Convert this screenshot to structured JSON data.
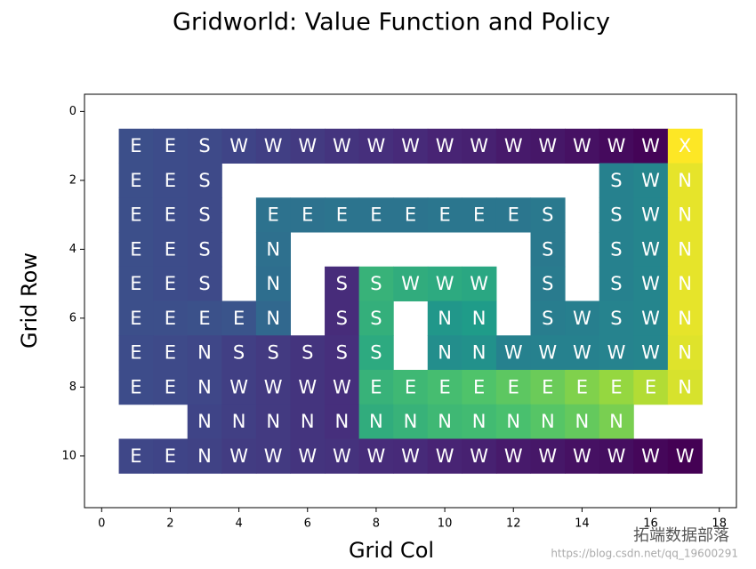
{
  "chart_data": {
    "type": "heatmap",
    "title": "Gridworld: Value Function and Policy",
    "xlabel": "Grid Col",
    "ylabel": "Grid Row",
    "xlim": [
      -0.5,
      18.5
    ],
    "ylim": [
      11.5,
      -0.5
    ],
    "xticks": [
      0,
      2,
      4,
      6,
      8,
      10,
      12,
      14,
      16,
      18
    ],
    "yticks": [
      0,
      2,
      4,
      6,
      8,
      10
    ],
    "colormap": "viridis",
    "rows": [
      1,
      2,
      3,
      4,
      5,
      6,
      7,
      8,
      9,
      10
    ],
    "cols": [
      1,
      2,
      3,
      4,
      5,
      6,
      7,
      8,
      9,
      10,
      11,
      12,
      13,
      14,
      15,
      16,
      17
    ],
    "values": [
      [
        0.28,
        0.27,
        0.26,
        0.24,
        0.22,
        0.2,
        0.18,
        0.16,
        0.14,
        0.12,
        0.11,
        0.09,
        0.08,
        0.06,
        0.04,
        0.02,
        1.0
      ],
      [
        0.28,
        0.27,
        0.26,
        null,
        null,
        null,
        null,
        null,
        null,
        null,
        null,
        null,
        null,
        null,
        0.5,
        0.52,
        0.97
      ],
      [
        0.28,
        0.27,
        0.26,
        null,
        0.43,
        0.43,
        0.44,
        0.44,
        0.44,
        0.45,
        0.45,
        0.45,
        0.46,
        null,
        0.5,
        0.52,
        0.97
      ],
      [
        0.28,
        0.27,
        0.26,
        null,
        0.42,
        null,
        null,
        null,
        null,
        null,
        null,
        null,
        0.46,
        null,
        0.5,
        0.52,
        0.97
      ],
      [
        0.28,
        0.27,
        0.26,
        null,
        0.41,
        null,
        0.15,
        0.7,
        0.68,
        0.67,
        0.66,
        null,
        0.47,
        null,
        0.5,
        0.52,
        0.97
      ],
      [
        0.28,
        0.28,
        0.29,
        0.3,
        0.38,
        null,
        0.15,
        0.69,
        null,
        0.6,
        0.62,
        null,
        0.48,
        0.49,
        0.51,
        0.52,
        0.97
      ],
      [
        0.27,
        0.26,
        0.25,
        0.22,
        0.2,
        0.18,
        0.16,
        0.67,
        null,
        0.56,
        0.57,
        0.5,
        0.5,
        0.5,
        0.51,
        0.52,
        0.96
      ],
      [
        0.27,
        0.26,
        0.25,
        0.22,
        0.2,
        0.18,
        0.16,
        0.7,
        0.72,
        0.74,
        0.76,
        0.78,
        0.8,
        0.83,
        0.86,
        0.9,
        0.95
      ],
      [
        null,
        null,
        0.24,
        0.22,
        0.2,
        0.18,
        0.16,
        0.68,
        0.7,
        0.72,
        0.73,
        0.75,
        0.77,
        0.79,
        0.82,
        null,
        null
      ],
      [
        0.25,
        0.24,
        0.23,
        0.21,
        0.2,
        0.18,
        0.17,
        0.15,
        0.14,
        0.12,
        0.11,
        0.09,
        0.08,
        0.06,
        0.05,
        0.03,
        0.01
      ]
    ],
    "labels": [
      [
        "E",
        "E",
        "S",
        "W",
        "W",
        "W",
        "W",
        "W",
        "W",
        "W",
        "W",
        "W",
        "W",
        "W",
        "W",
        "W",
        "X"
      ],
      [
        "E",
        "E",
        "S",
        null,
        null,
        null,
        null,
        null,
        null,
        null,
        null,
        null,
        null,
        null,
        "S",
        "W",
        "N"
      ],
      [
        "E",
        "E",
        "S",
        null,
        "E",
        "E",
        "E",
        "E",
        "E",
        "E",
        "E",
        "E",
        "S",
        null,
        "S",
        "W",
        "N"
      ],
      [
        "E",
        "E",
        "S",
        null,
        "N",
        null,
        null,
        null,
        null,
        null,
        null,
        null,
        "S",
        null,
        "S",
        "W",
        "N"
      ],
      [
        "E",
        "E",
        "S",
        null,
        "N",
        null,
        "S",
        "S",
        "W",
        "W",
        "W",
        null,
        "S",
        null,
        "S",
        "W",
        "N"
      ],
      [
        "E",
        "E",
        "E",
        "E",
        "N",
        null,
        "S",
        "S",
        null,
        "N",
        "N",
        null,
        "S",
        "W",
        "S",
        "W",
        "N"
      ],
      [
        "E",
        "E",
        "N",
        "S",
        "S",
        "S",
        "S",
        "S",
        null,
        "N",
        "N",
        "W",
        "W",
        "W",
        "W",
        "W",
        "N"
      ],
      [
        "E",
        "E",
        "N",
        "W",
        "W",
        "W",
        "W",
        "E",
        "E",
        "E",
        "E",
        "E",
        "E",
        "E",
        "E",
        "E",
        "N"
      ],
      [
        null,
        null,
        "N",
        "N",
        "N",
        "N",
        "N",
        "N",
        "N",
        "N",
        "N",
        "N",
        "N",
        "N",
        "N",
        null,
        null
      ],
      [
        "E",
        "E",
        "N",
        "W",
        "W",
        "W",
        "W",
        "W",
        "W",
        "W",
        "W",
        "W",
        "W",
        "W",
        "W",
        "W",
        "W"
      ]
    ]
  },
  "watermark": {
    "brand": "拓端数据部落",
    "url": "https://blog.csdn.net/qq_19600291"
  }
}
